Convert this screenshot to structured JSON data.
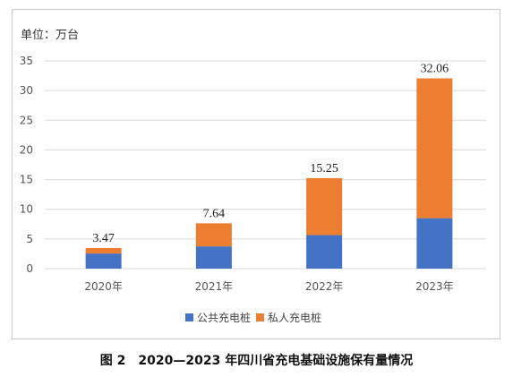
{
  "caption": "图 2　2020—2023 年四川省充电基础设施保有量情况",
  "chart_data": {
    "type": "bar",
    "stacked": true,
    "unit_label": "单位：万台",
    "categories": [
      "2020年",
      "2021年",
      "2022年",
      "2023年"
    ],
    "series": [
      {
        "name": "公共充电桩",
        "color": "#4472C4",
        "values": [
          2.55,
          3.75,
          5.65,
          8.5
        ]
      },
      {
        "name": "私人充电桩",
        "color": "#ED7D31",
        "values": [
          0.92,
          3.89,
          9.6,
          23.56
        ]
      }
    ],
    "totals": [
      "3.47",
      "7.64",
      "15.25",
      "32.06"
    ],
    "y_ticks": [
      "0",
      "5",
      "10",
      "15",
      "20",
      "25",
      "30",
      "35"
    ],
    "ylim": [
      0,
      35
    ],
    "grid": true,
    "legend_position": "bottom"
  }
}
